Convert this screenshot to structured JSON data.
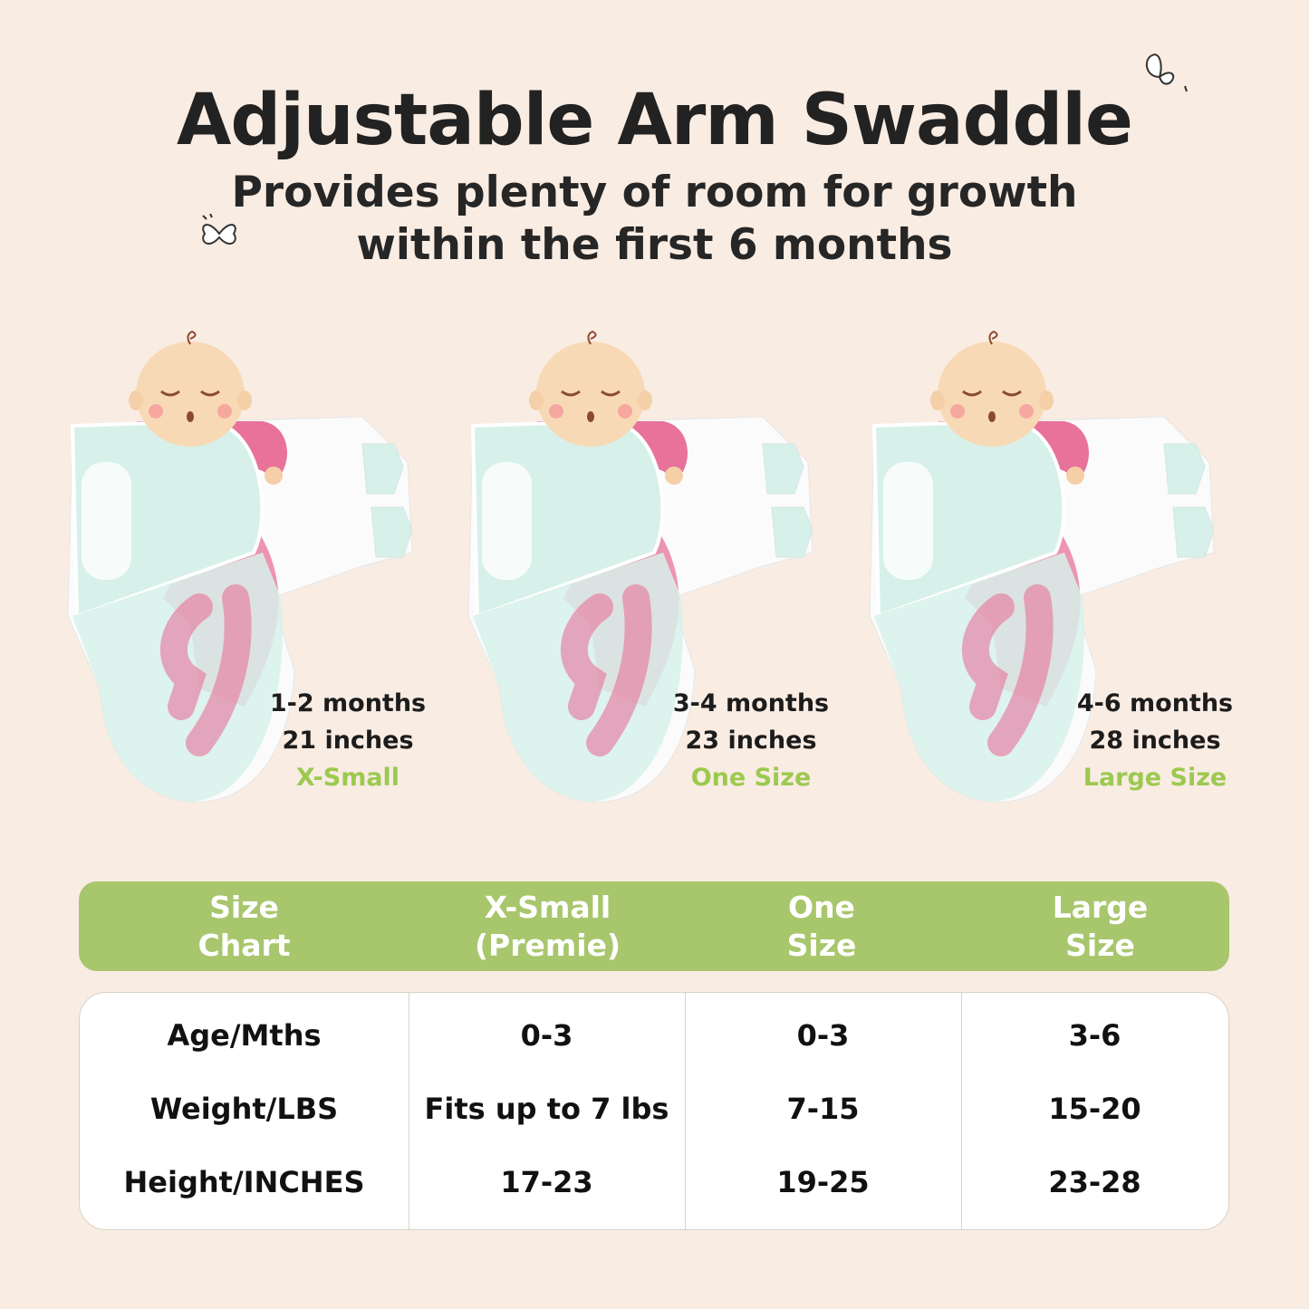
{
  "title": "Adjustable Arm Swaddle",
  "subtitle": [
    "Provides plenty of room for growth",
    "within the first 6 months"
  ],
  "colors": {
    "background": "#f9ece3",
    "accent_green": "#a8c66c",
    "size_label_green": "#9cc94f",
    "swaddle_mint": "#d7f1ea",
    "sleeve_pink": "#e8729a"
  },
  "decorations": [
    "butterfly-icon",
    "butterfly-icon"
  ],
  "products": [
    {
      "age": "1-2 months",
      "length": "21 inches",
      "size": "X-Small"
    },
    {
      "age": "3-4 months",
      "length": "23 inches",
      "size": "One Size"
    },
    {
      "age": "4-6 months",
      "length": "28 inches",
      "size": "Large Size"
    }
  ],
  "size_chart": {
    "headers": [
      "Size\nChart",
      "X-Small\n(Premie)",
      "One\nSize",
      "Large\nSize"
    ],
    "rows": [
      {
        "label": "Age/Mths",
        "values": [
          "0-3",
          "0-3",
          "3-6"
        ]
      },
      {
        "label": "Weight/LBS",
        "values": [
          "Fits up to 7 lbs",
          "7-15",
          "15-20"
        ]
      },
      {
        "label": "Height/INCHES",
        "values": [
          "17-23",
          "19-25",
          "23-28"
        ]
      }
    ]
  }
}
